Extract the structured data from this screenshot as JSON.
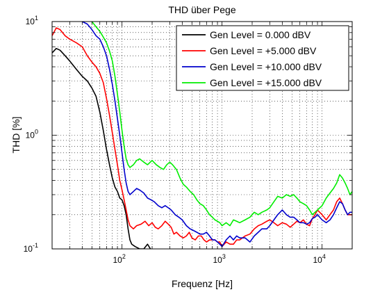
{
  "chart_data": {
    "type": "line",
    "title": "THD über Pege",
    "xlabel": "Frequenz [Hz]",
    "ylabel": "THD [%]",
    "x_scale": "log",
    "y_scale": "log",
    "xlim": [
      20,
      20000
    ],
    "ylim": [
      0.1,
      10
    ],
    "grid": true,
    "legend_position": "top-right",
    "x_ticks": [
      {
        "value": 100,
        "base": "10",
        "exp": "2"
      },
      {
        "value": 1000,
        "base": "10",
        "exp": "3"
      },
      {
        "value": 10000,
        "base": "10",
        "exp": "4"
      }
    ],
    "y_ticks": [
      {
        "value": 0.1,
        "base": "10",
        "exp": "-1"
      },
      {
        "value": 1,
        "base": "10",
        "exp": "0"
      },
      {
        "value": 10,
        "base": "10",
        "exp": "1"
      }
    ],
    "series": [
      {
        "name": "Gen Level = 0.000 dBV",
        "color": "#000000",
        "points": [
          [
            20,
            5.3
          ],
          [
            22,
            5.8
          ],
          [
            24,
            5.6
          ],
          [
            27,
            5.0
          ],
          [
            30,
            4.5
          ],
          [
            35,
            3.8
          ],
          [
            40,
            3.3
          ],
          [
            45,
            3.0
          ],
          [
            50,
            2.6
          ],
          [
            55,
            2.2
          ],
          [
            60,
            1.6
          ],
          [
            65,
            1.1
          ],
          [
            70,
            0.75
          ],
          [
            75,
            0.55
          ],
          [
            80,
            0.42
          ],
          [
            85,
            0.35
          ],
          [
            90,
            0.32
          ],
          [
            95,
            0.28
          ],
          [
            100,
            0.27
          ],
          [
            105,
            0.24
          ],
          [
            110,
            0.2
          ],
          [
            115,
            0.15
          ],
          [
            120,
            0.12
          ],
          [
            125,
            0.11
          ],
          [
            135,
            0.105
          ],
          [
            150,
            0.1
          ],
          [
            165,
            0.1
          ],
          [
            180,
            0.11
          ],
          [
            195,
            0.098
          ],
          [
            210,
            0.09
          ]
        ]
      },
      {
        "name": "Gen Level = +5.000 dBV",
        "color": "#ff0000",
        "points": [
          [
            20,
            7.5
          ],
          [
            22,
            8.8
          ],
          [
            24,
            8.5
          ],
          [
            27,
            7.5
          ],
          [
            30,
            7.0
          ],
          [
            35,
            6.5
          ],
          [
            40,
            6.0
          ],
          [
            45,
            5.0
          ],
          [
            50,
            4.4
          ],
          [
            55,
            4.0
          ],
          [
            60,
            3.5
          ],
          [
            65,
            2.9
          ],
          [
            70,
            2.1
          ],
          [
            75,
            1.5
          ],
          [
            80,
            1.05
          ],
          [
            85,
            0.75
          ],
          [
            90,
            0.55
          ],
          [
            95,
            0.4
          ],
          [
            100,
            0.33
          ],
          [
            105,
            0.27
          ],
          [
            110,
            0.22
          ],
          [
            115,
            0.18
          ],
          [
            120,
            0.16
          ],
          [
            130,
            0.15
          ],
          [
            140,
            0.16
          ],
          [
            155,
            0.165
          ],
          [
            170,
            0.175
          ],
          [
            185,
            0.16
          ],
          [
            200,
            0.17
          ],
          [
            215,
            0.155
          ],
          [
            230,
            0.15
          ],
          [
            250,
            0.16
          ],
          [
            270,
            0.175
          ],
          [
            290,
            0.165
          ],
          [
            310,
            0.155
          ],
          [
            330,
            0.135
          ],
          [
            350,
            0.14
          ],
          [
            380,
            0.13
          ],
          [
            410,
            0.125
          ],
          [
            440,
            0.13
          ],
          [
            470,
            0.14
          ],
          [
            500,
            0.125
          ],
          [
            540,
            0.12
          ],
          [
            580,
            0.13
          ],
          [
            620,
            0.13
          ],
          [
            660,
            0.12
          ],
          [
            700,
            0.115
          ],
          [
            750,
            0.12
          ],
          [
            800,
            0.12
          ],
          [
            850,
            0.12
          ],
          [
            900,
            0.115
          ],
          [
            950,
            0.115
          ],
          [
            1000,
            0.105
          ],
          [
            1100,
            0.115
          ],
          [
            1200,
            0.11
          ],
          [
            1300,
            0.11
          ],
          [
            1400,
            0.12
          ],
          [
            1500,
            0.12
          ],
          [
            1700,
            0.13
          ],
          [
            1900,
            0.135
          ],
          [
            2100,
            0.15
          ],
          [
            2300,
            0.16
          ],
          [
            2500,
            0.165
          ],
          [
            2800,
            0.175
          ],
          [
            3000,
            0.18
          ],
          [
            3300,
            0.17
          ],
          [
            3600,
            0.16
          ],
          [
            4000,
            0.17
          ],
          [
            4400,
            0.165
          ],
          [
            4800,
            0.155
          ],
          [
            5200,
            0.165
          ],
          [
            5600,
            0.175
          ],
          [
            6000,
            0.17
          ],
          [
            6500,
            0.18
          ],
          [
            7000,
            0.165
          ],
          [
            7500,
            0.16
          ],
          [
            8000,
            0.185
          ],
          [
            8500,
            0.2
          ],
          [
            9000,
            0.22
          ],
          [
            10000,
            0.2
          ],
          [
            11000,
            0.18
          ],
          [
            12000,
            0.2
          ],
          [
            13000,
            0.22
          ],
          [
            14000,
            0.26
          ],
          [
            15000,
            0.28
          ],
          [
            16000,
            0.25
          ],
          [
            17000,
            0.22
          ],
          [
            18000,
            0.2
          ],
          [
            19000,
            0.2
          ],
          [
            20000,
            0.2
          ]
        ]
      },
      {
        "name": "Gen Level = +10.000 dBV",
        "color": "#0000cc",
        "points": [
          [
            40,
            10
          ],
          [
            45,
            9.5
          ],
          [
            50,
            8.5
          ],
          [
            55,
            7.5
          ],
          [
            60,
            7.0
          ],
          [
            65,
            6.0
          ],
          [
            70,
            5.0
          ],
          [
            75,
            3.8
          ],
          [
            80,
            2.8
          ],
          [
            85,
            2.0
          ],
          [
            90,
            1.4
          ],
          [
            95,
            1.0
          ],
          [
            100,
            0.7
          ],
          [
            105,
            0.5
          ],
          [
            110,
            0.38
          ],
          [
            115,
            0.32
          ],
          [
            120,
            0.3
          ],
          [
            130,
            0.32
          ],
          [
            140,
            0.34
          ],
          [
            150,
            0.33
          ],
          [
            165,
            0.31
          ],
          [
            180,
            0.28
          ],
          [
            195,
            0.27
          ],
          [
            210,
            0.26
          ],
          [
            230,
            0.24
          ],
          [
            250,
            0.23
          ],
          [
            270,
            0.24
          ],
          [
            290,
            0.23
          ],
          [
            310,
            0.22
          ],
          [
            340,
            0.2
          ],
          [
            370,
            0.19
          ],
          [
            400,
            0.18
          ],
          [
            440,
            0.16
          ],
          [
            480,
            0.15
          ],
          [
            520,
            0.145
          ],
          [
            560,
            0.14
          ],
          [
            600,
            0.135
          ],
          [
            650,
            0.135
          ],
          [
            700,
            0.14
          ],
          [
            750,
            0.13
          ],
          [
            800,
            0.12
          ],
          [
            850,
            0.12
          ],
          [
            900,
            0.115
          ],
          [
            950,
            0.11
          ],
          [
            1000,
            0.105
          ],
          [
            1100,
            0.12
          ],
          [
            1200,
            0.13
          ],
          [
            1300,
            0.12
          ],
          [
            1400,
            0.13
          ],
          [
            1500,
            0.125
          ],
          [
            1700,
            0.125
          ],
          [
            1900,
            0.115
          ],
          [
            2100,
            0.13
          ],
          [
            2300,
            0.14
          ],
          [
            2500,
            0.15
          ],
          [
            2800,
            0.15
          ],
          [
            3000,
            0.16
          ],
          [
            3300,
            0.18
          ],
          [
            3600,
            0.2
          ],
          [
            4000,
            0.22
          ],
          [
            4400,
            0.2
          ],
          [
            4800,
            0.19
          ],
          [
            5200,
            0.19
          ],
          [
            5600,
            0.18
          ],
          [
            6000,
            0.17
          ],
          [
            6500,
            0.17
          ],
          [
            7000,
            0.165
          ],
          [
            7500,
            0.17
          ],
          [
            8000,
            0.185
          ],
          [
            8500,
            0.19
          ],
          [
            9000,
            0.2
          ],
          [
            10000,
            0.18
          ],
          [
            11000,
            0.17
          ],
          [
            12000,
            0.18
          ],
          [
            13000,
            0.2
          ],
          [
            14000,
            0.23
          ],
          [
            15000,
            0.26
          ],
          [
            16000,
            0.25
          ],
          [
            17000,
            0.22
          ],
          [
            18000,
            0.2
          ],
          [
            19000,
            0.21
          ],
          [
            20000,
            0.21
          ]
        ]
      },
      {
        "name": "Gen Level = +15.000 dBV",
        "color": "#00ee00",
        "points": [
          [
            50,
            10
          ],
          [
            55,
            9.0
          ],
          [
            60,
            8.2
          ],
          [
            65,
            7.3
          ],
          [
            70,
            6.5
          ],
          [
            75,
            5.5
          ],
          [
            80,
            4.5
          ],
          [
            85,
            3.3
          ],
          [
            90,
            2.3
          ],
          [
            95,
            1.6
          ],
          [
            100,
            1.1
          ],
          [
            105,
            0.8
          ],
          [
            110,
            0.62
          ],
          [
            115,
            0.55
          ],
          [
            120,
            0.52
          ],
          [
            130,
            0.55
          ],
          [
            140,
            0.6
          ],
          [
            150,
            0.62
          ],
          [
            165,
            0.58
          ],
          [
            180,
            0.55
          ],
          [
            200,
            0.6
          ],
          [
            220,
            0.55
          ],
          [
            240,
            0.52
          ],
          [
            260,
            0.5
          ],
          [
            280,
            0.55
          ],
          [
            300,
            0.58
          ],
          [
            320,
            0.55
          ],
          [
            350,
            0.5
          ],
          [
            380,
            0.42
          ],
          [
            410,
            0.37
          ],
          [
            440,
            0.35
          ],
          [
            480,
            0.32
          ],
          [
            520,
            0.3
          ],
          [
            560,
            0.27
          ],
          [
            600,
            0.25
          ],
          [
            650,
            0.24
          ],
          [
            700,
            0.22
          ],
          [
            750,
            0.2
          ],
          [
            800,
            0.19
          ],
          [
            850,
            0.18
          ],
          [
            900,
            0.175
          ],
          [
            950,
            0.17
          ],
          [
            1000,
            0.16
          ],
          [
            1100,
            0.17
          ],
          [
            1200,
            0.16
          ],
          [
            1300,
            0.18
          ],
          [
            1400,
            0.175
          ],
          [
            1500,
            0.17
          ],
          [
            1700,
            0.18
          ],
          [
            1900,
            0.19
          ],
          [
            2100,
            0.21
          ],
          [
            2300,
            0.2
          ],
          [
            2500,
            0.21
          ],
          [
            2800,
            0.22
          ],
          [
            3000,
            0.23
          ],
          [
            3300,
            0.26
          ],
          [
            3600,
            0.29
          ],
          [
            4000,
            0.28
          ],
          [
            4400,
            0.3
          ],
          [
            4800,
            0.29
          ],
          [
            5200,
            0.3
          ],
          [
            5600,
            0.28
          ],
          [
            6000,
            0.26
          ],
          [
            6500,
            0.25
          ],
          [
            7000,
            0.24
          ],
          [
            7500,
            0.22
          ],
          [
            8000,
            0.2
          ],
          [
            8500,
            0.21
          ],
          [
            9000,
            0.22
          ],
          [
            10000,
            0.24
          ],
          [
            11000,
            0.28
          ],
          [
            12000,
            0.31
          ],
          [
            13000,
            0.34
          ],
          [
            14000,
            0.38
          ],
          [
            15000,
            0.45
          ],
          [
            16000,
            0.42
          ],
          [
            17000,
            0.38
          ],
          [
            18000,
            0.34
          ],
          [
            19000,
            0.3
          ],
          [
            20000,
            0.32
          ]
        ]
      }
    ]
  }
}
